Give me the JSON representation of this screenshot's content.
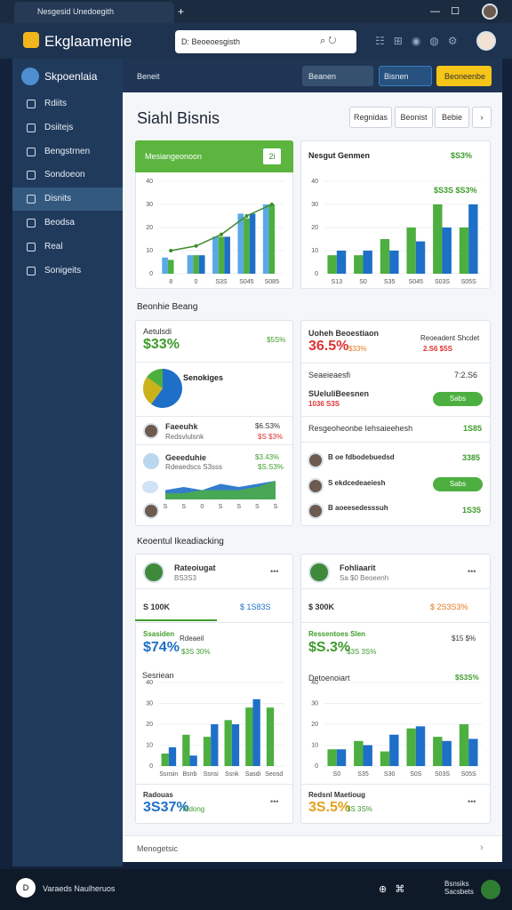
{
  "tab": "Nesgesid Unedoegith",
  "header": {
    "logo": "Ekglaamenie",
    "search": "D: Beoeoesgisth"
  },
  "sidebar": {
    "title": "Skpoenlaia",
    "items": [
      "Rdiits",
      "Dsiitejs",
      "Bengstrnen",
      "Sondoeon",
      "Disnits",
      "Beodsa",
      "Real",
      "Sonigeits"
    ],
    "active": 4
  },
  "toolbar": {
    "label": "Beneit",
    "filters": [
      "Beanen",
      "Bisnen"
    ],
    "action": "Beoneenbe"
  },
  "page": {
    "title": "Siahl Bisnis",
    "buttons": [
      "Regnidas",
      "Beonist",
      "Bebie"
    ],
    "sections": [
      "Beonhie Beang",
      "Keoentul Ikeadiacking"
    ],
    "footer": "Menogetsic"
  },
  "charts": [
    {
      "type": "bar",
      "title": "Mesiangeonoon",
      "badge": "2i",
      "ylim": [
        0,
        40
      ],
      "yticks": [
        0,
        10,
        20,
        30,
        40
      ],
      "categories": [
        "8",
        "0",
        "S3S",
        "S045",
        "S085"
      ],
      "series": [
        {
          "color": "#5aa9e6",
          "values": [
            7,
            8,
            16,
            26,
            30
          ]
        },
        {
          "color": "#4caf3f",
          "values": [
            6,
            8,
            16,
            24,
            30
          ]
        },
        {
          "color": "#1e6fc8",
          "values": [
            0,
            8,
            16,
            26,
            0
          ]
        }
      ],
      "line": {
        "color": "#3d8b2a",
        "values": [
          10,
          12,
          17,
          25,
          30
        ]
      }
    },
    {
      "type": "bar",
      "title": "Nesgut Genmen",
      "badge": "$S3%",
      "note": "$S3S $S3%",
      "ylim": [
        0,
        40
      ],
      "yticks": [
        0,
        10,
        20,
        30,
        40
      ],
      "categories": [
        "S13",
        "S0",
        "S35",
        "S045",
        "S03S",
        "S05S"
      ],
      "series": [
        {
          "color": "#4caf3f",
          "values": [
            8,
            8,
            15,
            20,
            30,
            20
          ]
        },
        {
          "color": "#1e6fc8",
          "values": [
            10,
            10,
            10,
            14,
            20,
            30
          ]
        }
      ]
    },
    {
      "type": "bar",
      "title": "Sesriean",
      "ylim": [
        0,
        40
      ],
      "yticks": [
        0,
        10,
        20,
        30,
        40
      ],
      "categories": [
        "Ssnsin",
        "Bsnb",
        "Ssnsi",
        "Ssnk",
        "Sasdi",
        "Seosd"
      ],
      "series": [
        {
          "color": "#4caf3f",
          "values": [
            6,
            15,
            14,
            22,
            28,
            28
          ]
        },
        {
          "color": "#1e6fc8",
          "values": [
            9,
            5,
            20,
            20,
            32,
            0
          ]
        }
      ]
    },
    {
      "type": "bar",
      "title": "Detoenoiart",
      "badge": "$S3S%",
      "ylim": [
        0,
        40
      ],
      "yticks": [
        0,
        10,
        20,
        30,
        40
      ],
      "categories": [
        "S0",
        "S35",
        "S30",
        "S0S",
        "S03S",
        "S05S"
      ],
      "series": [
        {
          "color": "#4caf3f",
          "values": [
            8,
            12,
            7,
            18,
            14,
            20
          ]
        },
        {
          "color": "#1e6fc8",
          "values": [
            8,
            10,
            15,
            19,
            12,
            13
          ]
        }
      ]
    },
    {
      "type": "pie",
      "label": "Senokiges",
      "values": [
        60,
        25,
        15
      ],
      "colors": [
        "#1e6fc8",
        "#c9b21a",
        "#4caf3f"
      ]
    },
    {
      "type": "area",
      "categories": [
        "S",
        "S",
        "0",
        "S",
        "S",
        "S",
        "S"
      ],
      "ylim": [
        0,
        8
      ],
      "series": [
        {
          "color": "#1e6fc8",
          "values": [
            3,
            4,
            3,
            5,
            4,
            5,
            6
          ]
        },
        {
          "color": "#4caf3f",
          "values": [
            2,
            2,
            3,
            3,
            3,
            4,
            6
          ]
        }
      ]
    }
  ],
  "summary_left": {
    "title": "Aetulsdi",
    "value": "$33%",
    "change": "$5S%",
    "rows": [
      {
        "name": "Faeeuhk",
        "sub": "Redsvlulsnk",
        "v1": "$6.S3%",
        "v2": "$S $3%"
      },
      {
        "name": "Geeeduhie",
        "sub": "Rdeaedscs S3sss",
        "v1": "$3.43%",
        "v2": "$S.S3%"
      }
    ]
  },
  "summary_right": {
    "title": "Uoheh Beoestiaon",
    "value": "36.5%",
    "change": "$33%",
    "note": "Reoeadent Shcdet",
    "note_value": "2.S6 $5S",
    "line1": "Seaeieaesfi",
    "line1_value": "7:2.S6",
    "line2": "SUeluliBeesnen",
    "line2_value": "1036 S3S",
    "line2_button": "Sabs",
    "list_title": "Resgeoheonbe Iehsaieehesh",
    "list_value": "1S85",
    "people": [
      {
        "name": "B oe fdbodebuedsd",
        "value": "3385"
      },
      {
        "name": "S ekdcedeaeiesh",
        "value": "Sabs"
      },
      {
        "name": "B aoeesedesssuh",
        "value": "1S35"
      }
    ]
  },
  "tracking": [
    {
      "name": "Rateoiugat",
      "sub": "BS3S3",
      "stat1": "S 100K",
      "stat2": "$ 1S83S",
      "kpi_label": "Ssasiden",
      "kpi_value": "$74%",
      "kpi_change": "$3S 30%",
      "aside": "Rdeaeil",
      "bottom_label": "Radouas",
      "bottom_value": "3S37%",
      "bottom_change": "Tadong"
    },
    {
      "name": "Fohliaarit",
      "sub": "Sa $0 Beoeenh",
      "stat1": "$ 300K",
      "stat2": "$ 2S3S3%",
      "kpi_label": "Ressentoes Slen",
      "kpi_value": "$S.3%",
      "kpi_change": "$3S 3S%",
      "aside": "$15 $%",
      "bottom_label": "Redsnl Maetioug",
      "bottom_value": "3S.5%",
      "bottom_change": "$S 3S%"
    }
  ],
  "taskbar": {
    "user": "Varaeds Naulheruos",
    "status": "Bsnsiks Sacsbets"
  }
}
